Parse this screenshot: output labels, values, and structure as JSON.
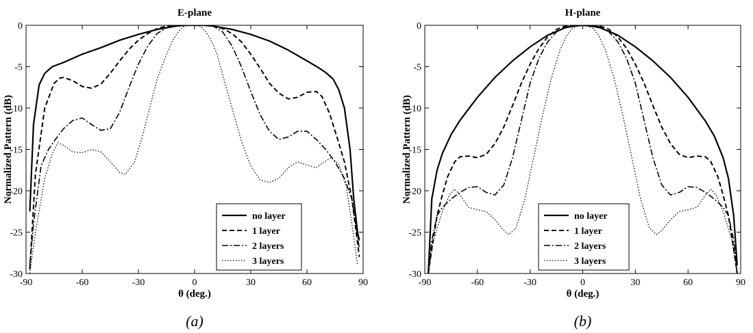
{
  "chart_data": [
    {
      "type": "line",
      "title": "E-plane",
      "xlabel": "θ (deg.)",
      "ylabel": "Normalized Pattern (dB)",
      "xlim": [
        -90,
        90
      ],
      "ylim": [
        -30,
        0
      ],
      "xticks": [
        "-90",
        "-60",
        "-30",
        "0",
        "30",
        "60",
        "90"
      ],
      "yticks": [
        "0",
        "-5",
        "-10",
        "-15",
        "-20",
        "-25",
        "-30"
      ],
      "caption": "(a)",
      "legend_position": "lower-right",
      "series": [
        {
          "name": "no layer",
          "style": "solid",
          "x": [
            -88,
            -86,
            -83,
            -80,
            -76,
            -70,
            -60,
            -50,
            -40,
            -30,
            -20,
            -10,
            -5,
            0,
            5,
            10,
            20,
            30,
            40,
            50,
            60,
            66,
            70,
            74,
            77,
            80,
            83,
            85,
            87,
            88
          ],
          "y": [
            -22.5,
            -12,
            -7.2,
            -5.8,
            -5,
            -4.5,
            -3.5,
            -2.7,
            -1.8,
            -1.1,
            -0.5,
            -0.1,
            0,
            0,
            0,
            -0.1,
            -0.5,
            -1.1,
            -1.9,
            -3,
            -4.3,
            -5.1,
            -5.7,
            -6.5,
            -7.8,
            -10,
            -15,
            -21,
            -25,
            -26
          ]
        },
        {
          "name": "1 layer",
          "style": "dashed",
          "x": [
            -88,
            -85,
            -80,
            -75,
            -72,
            -70,
            -65,
            -60,
            -55,
            -50,
            -45,
            -40,
            -35,
            -30,
            -25,
            -20,
            -15,
            -10,
            -5,
            0,
            5,
            10,
            15,
            20,
            25,
            30,
            35,
            40,
            45,
            50,
            55,
            60,
            65,
            68,
            72,
            76,
            80,
            84,
            88
          ],
          "y": [
            -29.5,
            -18,
            -10,
            -7,
            -6.4,
            -6.3,
            -6.7,
            -7.4,
            -7.6,
            -7.1,
            -5.8,
            -4.3,
            -2.9,
            -1.8,
            -1,
            -0.4,
            -0.1,
            0,
            0,
            0,
            0,
            -0.1,
            -0.4,
            -1,
            -2,
            -3.5,
            -5.2,
            -7,
            -8.2,
            -8.9,
            -8.7,
            -8.1,
            -8,
            -8.6,
            -10.6,
            -13.5,
            -16.5,
            -21,
            -28
          ]
        },
        {
          "name": "2 layers",
          "style": "dashdot",
          "x": [
            -88,
            -86,
            -82,
            -78,
            -74,
            -70,
            -65,
            -60,
            -55,
            -50,
            -45,
            -40,
            -35,
            -30,
            -25,
            -20,
            -15,
            -10,
            -5,
            0,
            5,
            10,
            15,
            20,
            25,
            30,
            35,
            40,
            45,
            50,
            55,
            60,
            65,
            70,
            75,
            80,
            84,
            88
          ],
          "y": [
            -29,
            -24,
            -17,
            -15,
            -13.7,
            -12.5,
            -11.5,
            -11.2,
            -12,
            -12.7,
            -12.5,
            -10.5,
            -7.5,
            -4.7,
            -2.5,
            -1,
            -0.3,
            0,
            0,
            0,
            0,
            -0.1,
            -0.8,
            -2.5,
            -5,
            -8,
            -10.8,
            -12.8,
            -13.8,
            -13.5,
            -12.8,
            -12.8,
            -13.8,
            -15,
            -16.5,
            -18.5,
            -21,
            -27
          ]
        },
        {
          "name": "3 layers",
          "style": "dotted",
          "x": [
            -88,
            -85,
            -80,
            -76,
            -73,
            -70,
            -65,
            -60,
            -55,
            -50,
            -45,
            -40,
            -37,
            -32,
            -28,
            -24,
            -20,
            -15,
            -12,
            -10,
            -8,
            -6,
            -4,
            -2,
            0,
            2,
            4,
            6,
            8,
            10,
            12,
            15,
            20,
            25,
            30,
            35,
            40,
            45,
            50,
            55,
            60,
            65,
            70,
            73,
            77,
            81,
            84,
            87
          ],
          "y": [
            -30,
            -25,
            -18.5,
            -15.5,
            -14.2,
            -14.5,
            -15.3,
            -15.4,
            -15,
            -15.3,
            -16.5,
            -17.8,
            -18,
            -16.5,
            -13.5,
            -10,
            -6.5,
            -3.5,
            -2,
            -1.2,
            -0.6,
            -0.2,
            0,
            0,
            0,
            0,
            -0.3,
            -0.8,
            -1.5,
            -2.4,
            -3.5,
            -6,
            -10,
            -14,
            -17,
            -18.7,
            -19,
            -18.5,
            -17.2,
            -16.5,
            -16.9,
            -17.2,
            -16.4,
            -16,
            -16.8,
            -19.5,
            -24,
            -29
          ]
        }
      ]
    },
    {
      "type": "line",
      "title": "H-plane",
      "xlabel": "θ (deg.)",
      "ylabel": "Normalized Pattern (dB)",
      "xlim": [
        -90,
        90
      ],
      "ylim": [
        -30,
        0
      ],
      "xticks": [
        "-90",
        "-60",
        "-30",
        "0",
        "30",
        "60",
        "90"
      ],
      "yticks": [
        "0",
        "-5",
        "-10",
        "-15",
        "-20",
        "-25",
        "-30"
      ],
      "caption": "(b)",
      "legend_position": "lower-right",
      "series": [
        {
          "name": "no layer",
          "style": "solid",
          "x": [
            -88,
            -86,
            -83,
            -80,
            -75,
            -70,
            -60,
            -50,
            -40,
            -30,
            -20,
            -10,
            -5,
            0,
            5,
            10,
            20,
            30,
            40,
            50,
            60,
            70,
            75,
            80,
            83,
            86,
            88
          ],
          "y": [
            -30,
            -21,
            -17.5,
            -15.5,
            -13.2,
            -11.5,
            -8.7,
            -6.3,
            -4.3,
            -2.6,
            -1.2,
            -0.3,
            -0.1,
            0,
            -0.1,
            -0.3,
            -1.2,
            -2.6,
            -4.3,
            -6.3,
            -8.7,
            -11.6,
            -13.4,
            -16,
            -18.5,
            -23,
            -29
          ]
        },
        {
          "name": "1 layer",
          "style": "dashed",
          "x": [
            -88,
            -86,
            -83,
            -80,
            -77,
            -73,
            -70,
            -65,
            -60,
            -55,
            -50,
            -45,
            -40,
            -35,
            -30,
            -25,
            -20,
            -15,
            -10,
            -5,
            0,
            5,
            10,
            15,
            20,
            25,
            30,
            35,
            40,
            45,
            50,
            55,
            60,
            65,
            70,
            73,
            77,
            80,
            83,
            86,
            88
          ],
          "y": [
            -30,
            -27,
            -23,
            -20.5,
            -18.3,
            -16.5,
            -15.9,
            -15.8,
            -16,
            -15.6,
            -14.3,
            -12.3,
            -9.7,
            -7,
            -4.7,
            -2.8,
            -1.4,
            -0.5,
            -0.1,
            0,
            0,
            0,
            -0.1,
            -0.5,
            -1.4,
            -2.8,
            -4.7,
            -7,
            -9.7,
            -12.3,
            -14.3,
            -15.6,
            -16,
            -15.8,
            -15.9,
            -16.5,
            -18.3,
            -20.5,
            -23,
            -27,
            -30
          ]
        },
        {
          "name": "2 layers",
          "style": "dashdot",
          "x": [
            -88,
            -86,
            -83,
            -80,
            -75,
            -70,
            -65,
            -60,
            -55,
            -50,
            -45,
            -40,
            -35,
            -30,
            -25,
            -20,
            -15,
            -10,
            -5,
            0,
            5,
            10,
            15,
            20,
            25,
            30,
            35,
            40,
            45,
            50,
            55,
            60,
            65,
            70,
            75,
            80,
            83,
            86,
            88
          ],
          "y": [
            -30,
            -26,
            -23,
            -22,
            -21,
            -20.2,
            -19.6,
            -19.5,
            -20.2,
            -20.5,
            -19.3,
            -16,
            -11.5,
            -7,
            -4,
            -2,
            -0.8,
            -0.2,
            0,
            0,
            0,
            -0.2,
            -0.8,
            -2,
            -4,
            -7,
            -11.5,
            -16,
            -19.3,
            -20.5,
            -20.2,
            -19.5,
            -19.6,
            -20.2,
            -21,
            -22,
            -23,
            -26,
            -30
          ]
        },
        {
          "name": "3 layers",
          "style": "dotted",
          "x": [
            -88,
            -85,
            -80,
            -76,
            -73,
            -70,
            -65,
            -60,
            -55,
            -50,
            -45,
            -42,
            -38,
            -33,
            -28,
            -23,
            -18,
            -13,
            -9,
            -6,
            -3,
            0,
            3,
            6,
            9,
            13,
            18,
            23,
            28,
            33,
            38,
            42,
            45,
            50,
            55,
            60,
            65,
            70,
            73,
            76,
            80,
            85,
            88
          ],
          "y": [
            -30,
            -26,
            -22.5,
            -20.5,
            -19.8,
            -20.5,
            -22,
            -22.3,
            -22.5,
            -23.5,
            -24.8,
            -25.3,
            -24.5,
            -21,
            -16,
            -11,
            -6.5,
            -3,
            -1.2,
            -0.4,
            -0.1,
            0,
            -0.1,
            -0.4,
            -1.2,
            -3,
            -6.5,
            -11,
            -16,
            -21,
            -24.5,
            -25.3,
            -24.8,
            -23.5,
            -22.5,
            -22.3,
            -22,
            -20.5,
            -19.8,
            -20.5,
            -22.5,
            -26,
            -30
          ]
        }
      ]
    }
  ]
}
